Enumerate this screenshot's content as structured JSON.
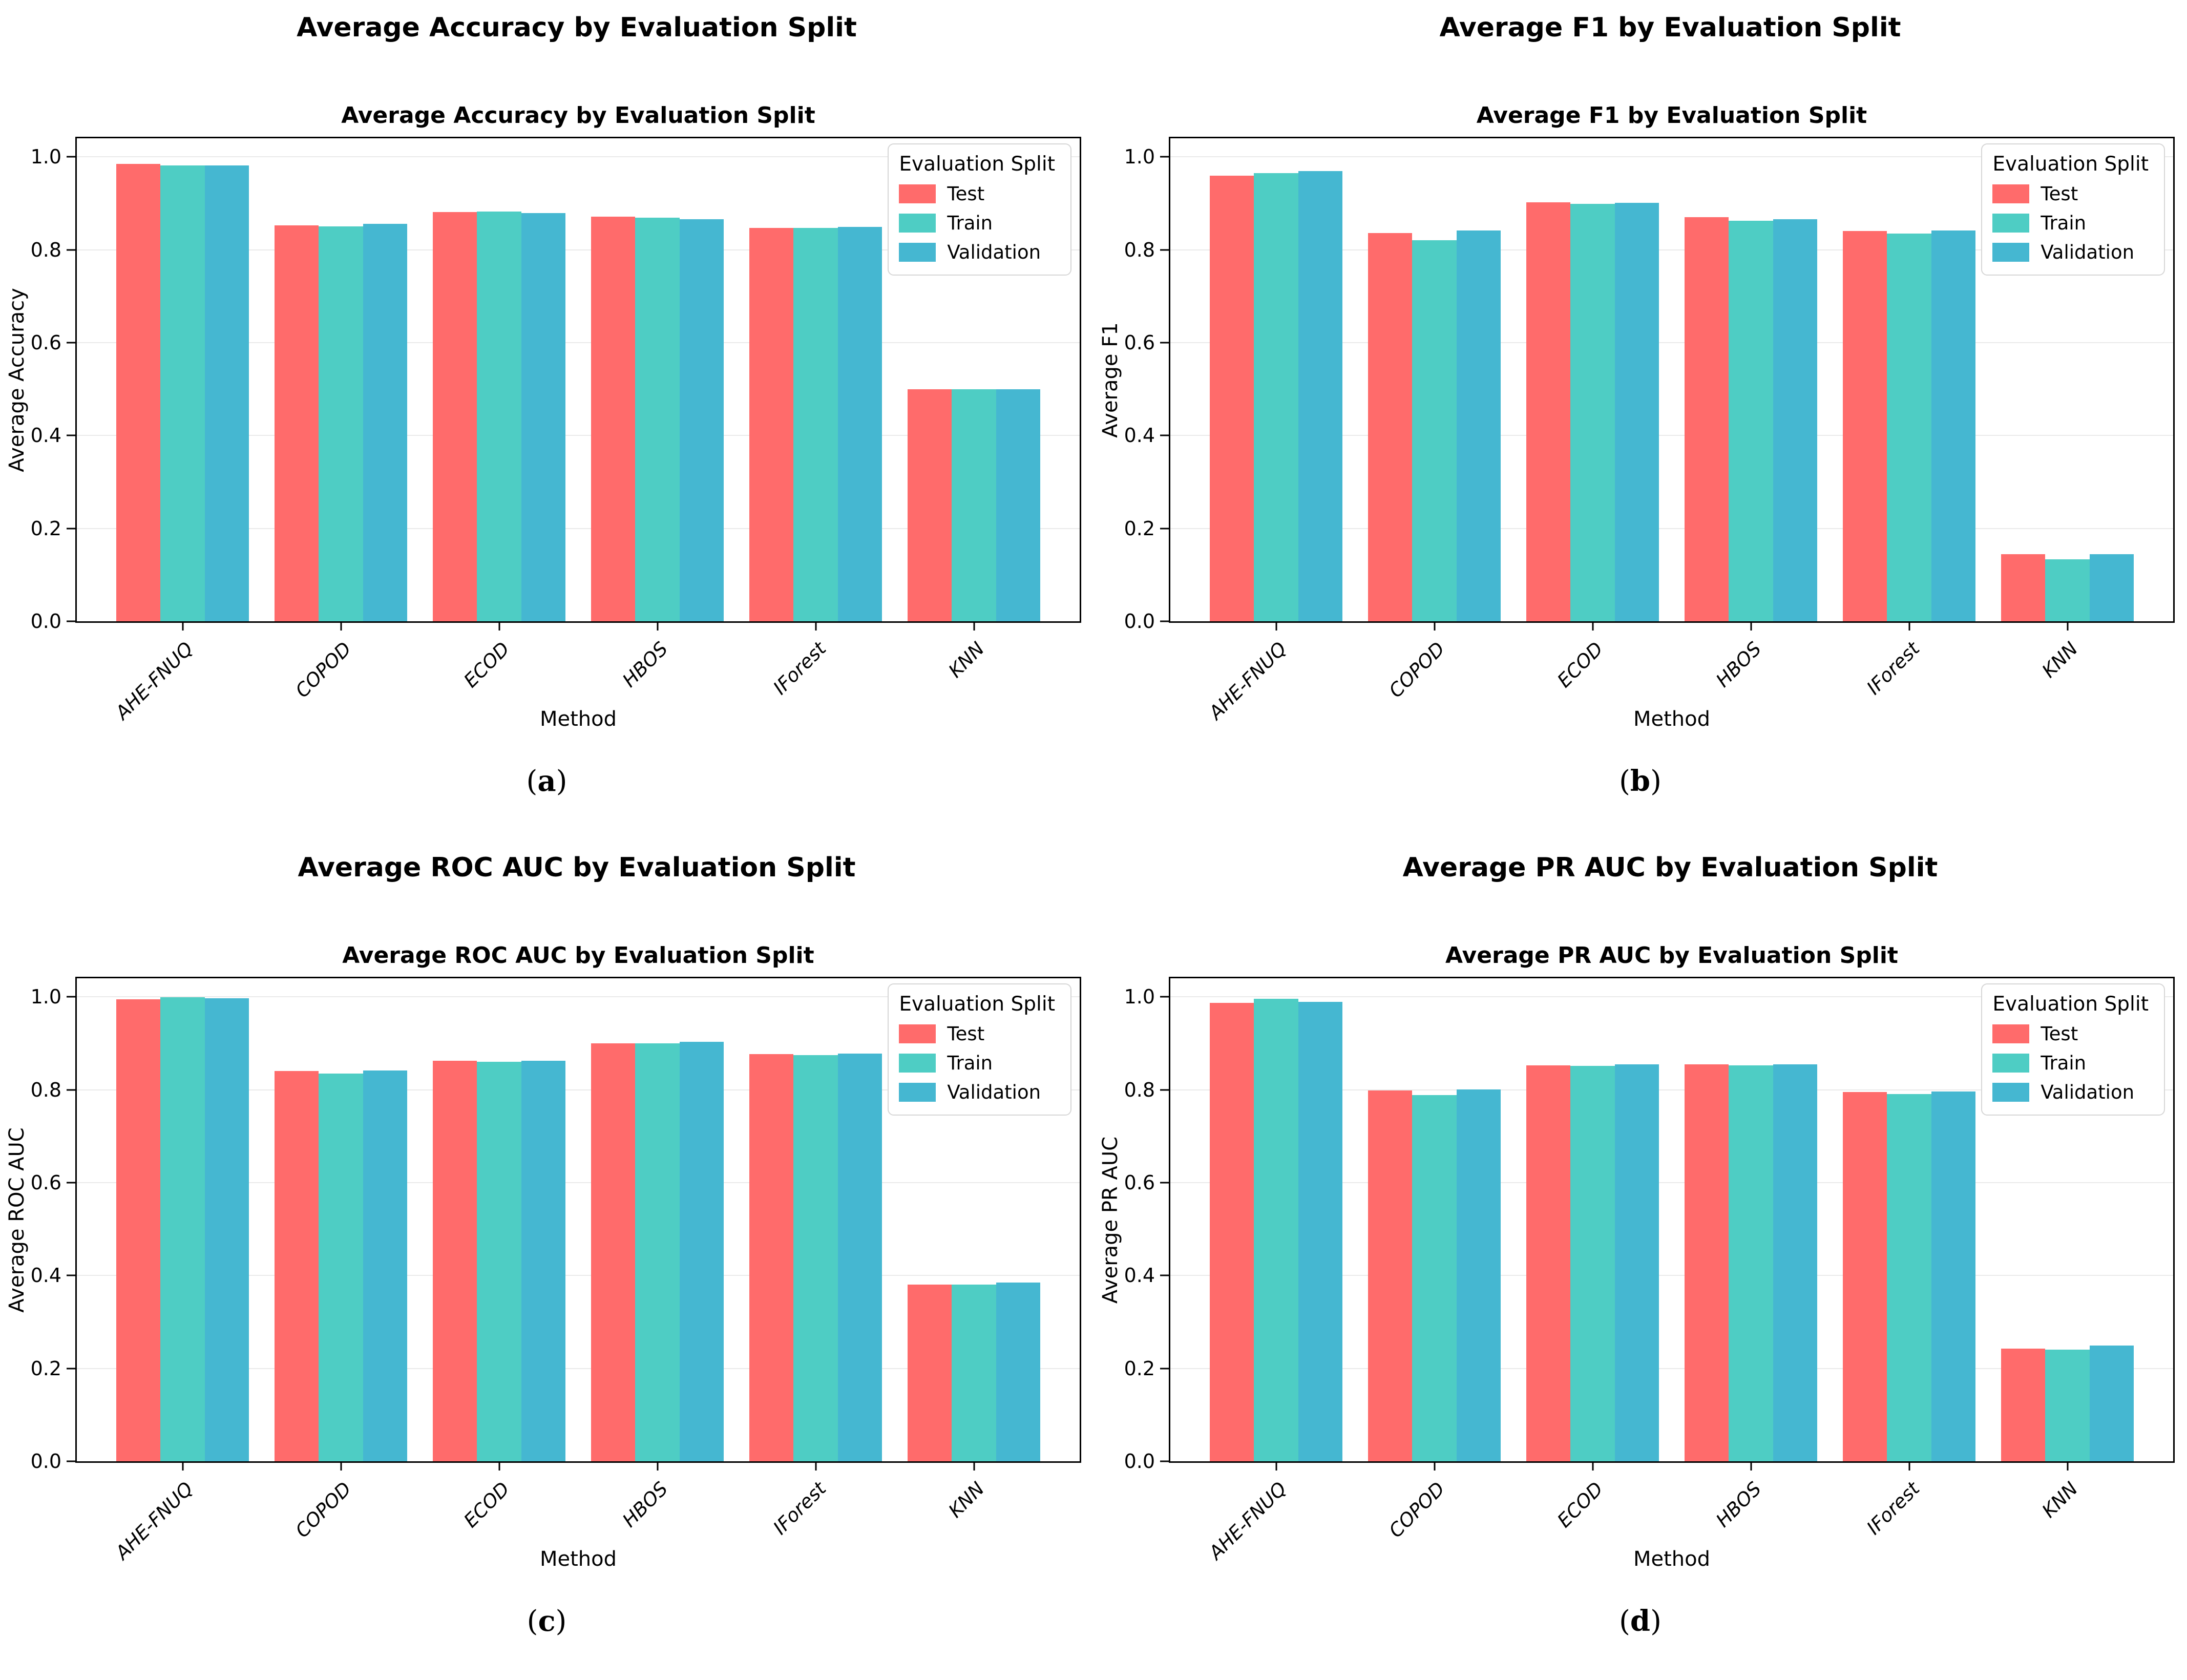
{
  "figure": {
    "background": "#ffffff",
    "xlabel": "Method",
    "legend": {
      "title": "Evaluation Split",
      "position": "upper right",
      "entries": [
        "Test",
        "Train",
        "Validation"
      ]
    },
    "series_colors": [
      "#ff6b6b",
      "#4ecdc4",
      "#45b7d1"
    ],
    "grid_color": "#eaeaea",
    "y_ticks": [
      "0.0",
      "0.2",
      "0.4",
      "0.6",
      "0.8",
      "1.0"
    ],
    "methods": [
      "AHE-FNUQ",
      "COPOD",
      "ECOD",
      "HBOS",
      "IForest",
      "KNN"
    ]
  },
  "chart_data": [
    {
      "type": "bar",
      "outer_title": "Average Accuracy by Evaluation Split",
      "title": "Average Accuracy by Evaluation Split",
      "xlabel": "Method",
      "ylabel": "Average Accuracy",
      "ylim": [
        0,
        1.04
      ],
      "grid": true,
      "legend_position": "upper right",
      "caption": {
        "open": "(",
        "letter": "a",
        "close": ")"
      },
      "categories": [
        "AHE-FNUQ",
        "COPOD",
        "ECOD",
        "HBOS",
        "IForest",
        "KNN"
      ],
      "series": [
        {
          "name": "Test",
          "values": [
            0.985,
            0.853,
            0.881,
            0.871,
            0.847,
            0.5
          ]
        },
        {
          "name": "Train",
          "values": [
            0.982,
            0.85,
            0.882,
            0.869,
            0.847,
            0.5
          ]
        },
        {
          "name": "Validation",
          "values": [
            0.982,
            0.856,
            0.879,
            0.866,
            0.849,
            0.5
          ]
        }
      ]
    },
    {
      "type": "bar",
      "outer_title": "Average F1 by Evaluation Split",
      "title": "Average F1 by Evaluation Split",
      "xlabel": "Method",
      "ylabel": "Average F1",
      "ylim": [
        0,
        1.04
      ],
      "grid": true,
      "legend_position": "upper right",
      "caption": {
        "open": "(",
        "letter": "b",
        "close": ")"
      },
      "categories": [
        "AHE-FNUQ",
        "COPOD",
        "ECOD",
        "HBOS",
        "IForest",
        "KNN"
      ],
      "series": [
        {
          "name": "Test",
          "values": [
            0.96,
            0.836,
            0.902,
            0.87,
            0.84,
            0.145
          ]
        },
        {
          "name": "Train",
          "values": [
            0.965,
            0.821,
            0.899,
            0.862,
            0.835,
            0.134
          ]
        },
        {
          "name": "Validation",
          "values": [
            0.969,
            0.842,
            0.901,
            0.866,
            0.841,
            0.145
          ]
        }
      ]
    },
    {
      "type": "bar",
      "outer_title": "Average ROC AUC by Evaluation Split",
      "title": "Average ROC AUC by Evaluation Split",
      "xlabel": "Method",
      "ylabel": "Average ROC AUC",
      "ylim": [
        0,
        1.04
      ],
      "grid": true,
      "legend_position": "upper right",
      "caption": {
        "open": "(",
        "letter": "c",
        "close": ")"
      },
      "categories": [
        "AHE-FNUQ",
        "COPOD",
        "ECOD",
        "HBOS",
        "IForest",
        "KNN"
      ],
      "series": [
        {
          "name": "Test",
          "values": [
            0.995,
            0.84,
            0.862,
            0.9,
            0.877,
            0.38
          ]
        },
        {
          "name": "Train",
          "values": [
            0.999,
            0.835,
            0.86,
            0.9,
            0.875,
            0.38
          ]
        },
        {
          "name": "Validation",
          "values": [
            0.997,
            0.841,
            0.863,
            0.903,
            0.878,
            0.385
          ]
        }
      ]
    },
    {
      "type": "bar",
      "outer_title": "Average PR AUC by Evaluation Split",
      "title": "Average PR AUC by Evaluation Split",
      "xlabel": "Method",
      "ylabel": "Average PR AUC",
      "ylim": [
        0,
        1.04
      ],
      "grid": true,
      "legend_position": "upper right",
      "caption": {
        "open": "(",
        "letter": "d",
        "close": ")"
      },
      "categories": [
        "AHE-FNUQ",
        "COPOD",
        "ECOD",
        "HBOS",
        "IForest",
        "KNN"
      ],
      "series": [
        {
          "name": "Test",
          "values": [
            0.987,
            0.798,
            0.853,
            0.855,
            0.795,
            0.243
          ]
        },
        {
          "name": "Train",
          "values": [
            0.996,
            0.789,
            0.851,
            0.852,
            0.791,
            0.24
          ]
        },
        {
          "name": "Validation",
          "values": [
            0.989,
            0.801,
            0.855,
            0.855,
            0.796,
            0.249
          ]
        }
      ]
    }
  ]
}
